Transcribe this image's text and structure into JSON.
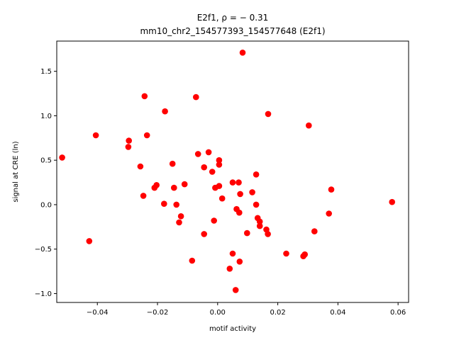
{
  "chart_data": {
    "type": "scatter",
    "title_line1": "E2f1, ρ = − 0.31",
    "title_line2": "mm10_chr2_154577393_154577648 (E2f1)",
    "xlabel": "motif activity",
    "ylabel": "signal at CRE (ln)",
    "xlim": [
      -0.0535,
      0.0635
    ],
    "ylim": [
      -1.1,
      1.84
    ],
    "xticks": [
      -0.04,
      -0.02,
      0.0,
      0.02,
      0.04,
      0.06
    ],
    "xtick_labels": [
      "−0.04",
      "−0.02",
      "0.00",
      "0.02",
      "0.04",
      "0.06"
    ],
    "yticks": [
      -1.0,
      -0.5,
      0.0,
      0.5,
      1.0,
      1.5
    ],
    "ytick_labels": [
      "−1.0",
      "−0.5",
      "0.0",
      "0.5",
      "1.0",
      "1.5"
    ],
    "marker_color": "#ff0000",
    "grid": false,
    "legend": "none",
    "points": [
      [
        -0.0517,
        0.53
      ],
      [
        -0.0427,
        -0.41
      ],
      [
        -0.0405,
        0.78
      ],
      [
        -0.0295,
        0.72
      ],
      [
        -0.0297,
        0.65
      ],
      [
        -0.0257,
        0.43
      ],
      [
        -0.0247,
        0.1
      ],
      [
        -0.0243,
        1.22
      ],
      [
        -0.0235,
        0.78
      ],
      [
        -0.021,
        0.19
      ],
      [
        -0.0203,
        0.22
      ],
      [
        -0.0178,
        0.01
      ],
      [
        -0.0175,
        1.05
      ],
      [
        -0.015,
        0.46
      ],
      [
        -0.0145,
        0.19
      ],
      [
        -0.0137,
        0.0
      ],
      [
        -0.0128,
        -0.2
      ],
      [
        -0.0122,
        -0.13
      ],
      [
        -0.011,
        0.23
      ],
      [
        -0.0085,
        -0.63
      ],
      [
        -0.0072,
        1.21
      ],
      [
        -0.0065,
        0.57
      ],
      [
        -0.0045,
        -0.33
      ],
      [
        -0.0045,
        0.42
      ],
      [
        -0.003,
        0.59
      ],
      [
        -0.0018,
        0.37
      ],
      [
        -0.0012,
        -0.18
      ],
      [
        -0.0008,
        0.19
      ],
      [
        0.0005,
        0.21
      ],
      [
        0.0005,
        0.5
      ],
      [
        0.0005,
        0.45
      ],
      [
        0.0015,
        0.07
      ],
      [
        0.004,
        -0.72
      ],
      [
        0.005,
        0.25
      ],
      [
        0.005,
        -0.55
      ],
      [
        0.006,
        -0.96
      ],
      [
        0.0063,
        -0.05
      ],
      [
        0.007,
        0.25
      ],
      [
        0.0072,
        -0.09
      ],
      [
        0.0073,
        -0.64
      ],
      [
        0.0075,
        0.12
      ],
      [
        0.0083,
        1.71
      ],
      [
        0.0098,
        -0.32
      ],
      [
        0.0115,
        0.14
      ],
      [
        0.0128,
        0.34
      ],
      [
        0.0128,
        0.0
      ],
      [
        0.0133,
        -0.15
      ],
      [
        0.014,
        -0.19
      ],
      [
        0.014,
        -0.24
      ],
      [
        0.0162,
        -0.28
      ],
      [
        0.0167,
        -0.33
      ],
      [
        0.0168,
        1.02
      ],
      [
        0.0228,
        -0.55
      ],
      [
        0.0285,
        -0.58
      ],
      [
        0.029,
        -0.56
      ],
      [
        0.0303,
        0.89
      ],
      [
        0.0322,
        -0.3
      ],
      [
        0.037,
        -0.1
      ],
      [
        0.0378,
        0.17
      ],
      [
        0.058,
        0.03
      ]
    ]
  }
}
